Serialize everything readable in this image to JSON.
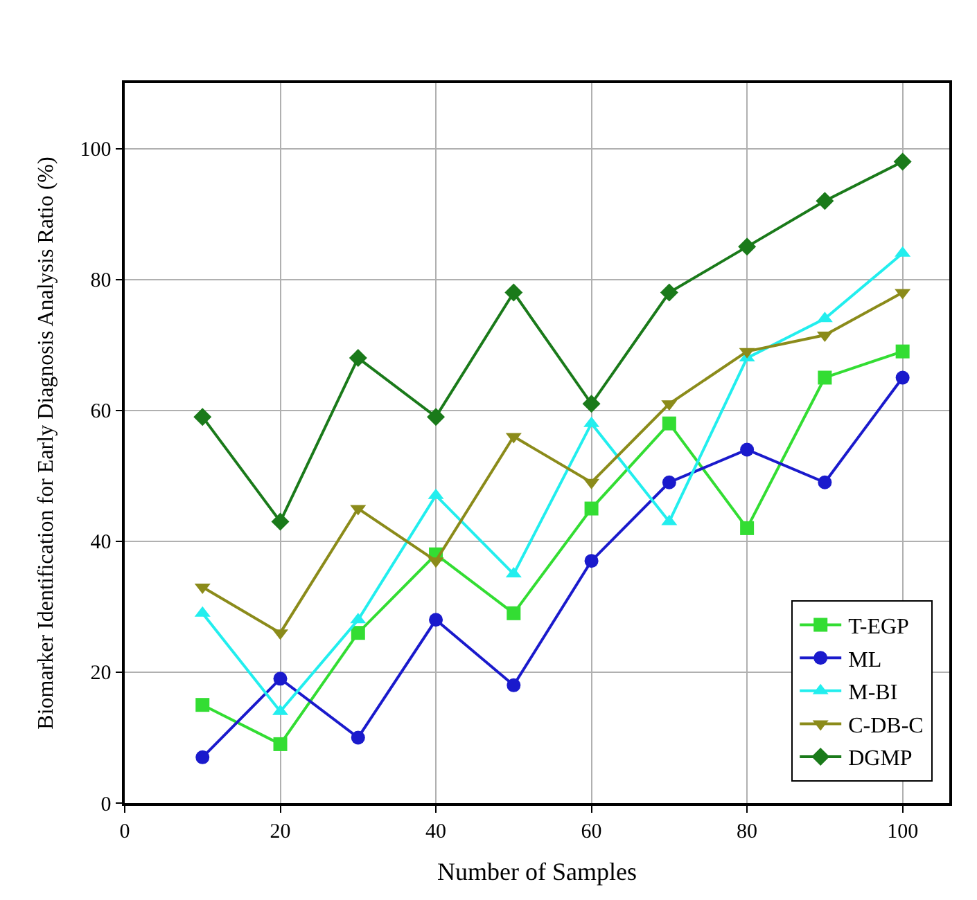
{
  "chart_data": {
    "type": "line",
    "xlabel": "Number of Samples",
    "ylabel": "Biomarker Identification for Early Diagnosis Analysis Ratio (%)",
    "x": [
      10,
      20,
      30,
      40,
      50,
      60,
      70,
      80,
      90,
      100
    ],
    "xlim": [
      0,
      106
    ],
    "xticks": [
      0,
      20,
      40,
      60,
      80,
      100
    ],
    "ylim": [
      0,
      110
    ],
    "yticks": [
      0,
      20,
      40,
      60,
      80,
      100
    ],
    "grid": true,
    "legend": "bottom right",
    "line_style": "solid",
    "series": [
      {
        "name": "T-EGP",
        "color": "#33dd33",
        "marker": "square",
        "values": [
          15,
          9,
          26,
          38,
          29,
          45,
          58,
          42,
          65,
          69
        ]
      },
      {
        "name": "ML",
        "color": "#1a1acc",
        "marker": "circle",
        "values": [
          7,
          19,
          10,
          28,
          18,
          37,
          49,
          54,
          49,
          65
        ]
      },
      {
        "name": "M-BI",
        "color": "#22eeee",
        "marker": "triangle",
        "values": [
          29,
          14,
          28,
          47,
          35,
          58,
          43,
          68,
          74,
          84
        ]
      },
      {
        "name": "C-DB-C",
        "color": "#8b8b1a",
        "marker": "triangle-down",
        "values": [
          33,
          26,
          45,
          37,
          56,
          49,
          61,
          69,
          71.5,
          78
        ]
      },
      {
        "name": "DGMP",
        "color": "#1a7a1a",
        "marker": "diamond",
        "values": [
          59,
          43,
          68,
          59,
          78,
          61,
          78,
          85,
          92,
          98
        ]
      }
    ]
  }
}
